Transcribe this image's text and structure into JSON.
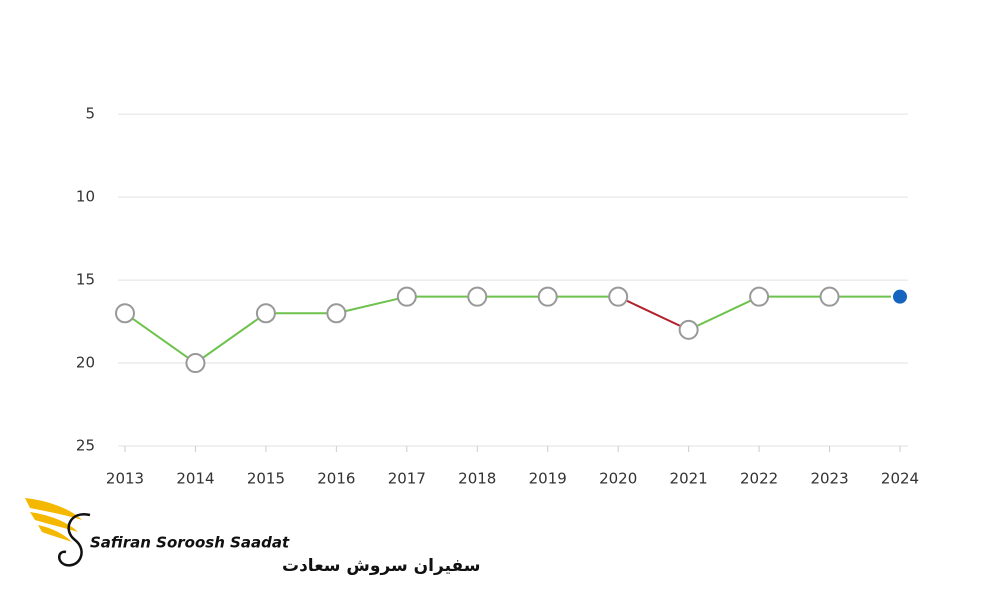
{
  "chart_data": {
    "type": "line",
    "categories": [
      "2013",
      "2014",
      "2015",
      "2016",
      "2017",
      "2018",
      "2019",
      "2020",
      "2021",
      "2022",
      "2023",
      "2024"
    ],
    "values": [
      17,
      20,
      17,
      17,
      16,
      16,
      16,
      16,
      18,
      16,
      16,
      16
    ],
    "segment_colors": [
      "#6cc24a",
      "#6cc24a",
      "#6cc24a",
      "#6cc24a",
      "#6cc24a",
      "#6cc24a",
      "#6cc24a",
      "#b3202a",
      "#6cc24a",
      "#6cc24a",
      "#6cc24a"
    ],
    "marker_color": "#ffffff",
    "marker_edge_color": "#999999",
    "highlight_color": "#1565c0",
    "ylim": [
      25,
      3
    ],
    "yticks": [
      5,
      10,
      15,
      20,
      25
    ],
    "grid": true
  },
  "logo": {
    "name": "Safiran Soroosh Saadat",
    "name_fa": "سفیران سروش سعادت"
  }
}
